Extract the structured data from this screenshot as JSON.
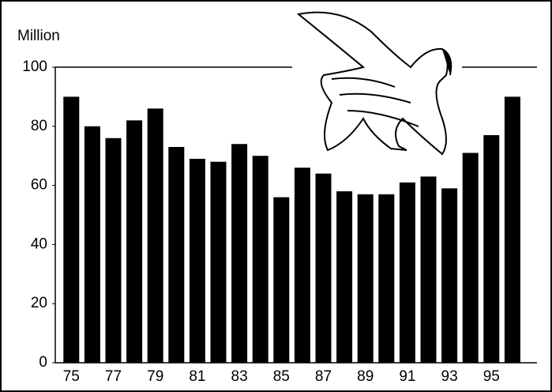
{
  "chart_data": {
    "type": "bar",
    "y_label": "Million",
    "categories": [
      "75",
      null,
      "77",
      null,
      "79",
      null,
      "81",
      null,
      "83",
      null,
      "85",
      null,
      "87",
      null,
      "89",
      null,
      "91",
      null,
      "93",
      null,
      "95",
      null
    ],
    "values": [
      90,
      80,
      76,
      82,
      86,
      73,
      69,
      68,
      74,
      70,
      56,
      66,
      64,
      58,
      57,
      57,
      61,
      63,
      59,
      71,
      77,
      90
    ],
    "color": "#000000",
    "ylim": [
      0,
      100
    ],
    "yticks": [
      0,
      20,
      40,
      60,
      80,
      100
    ],
    "grid": false
  }
}
